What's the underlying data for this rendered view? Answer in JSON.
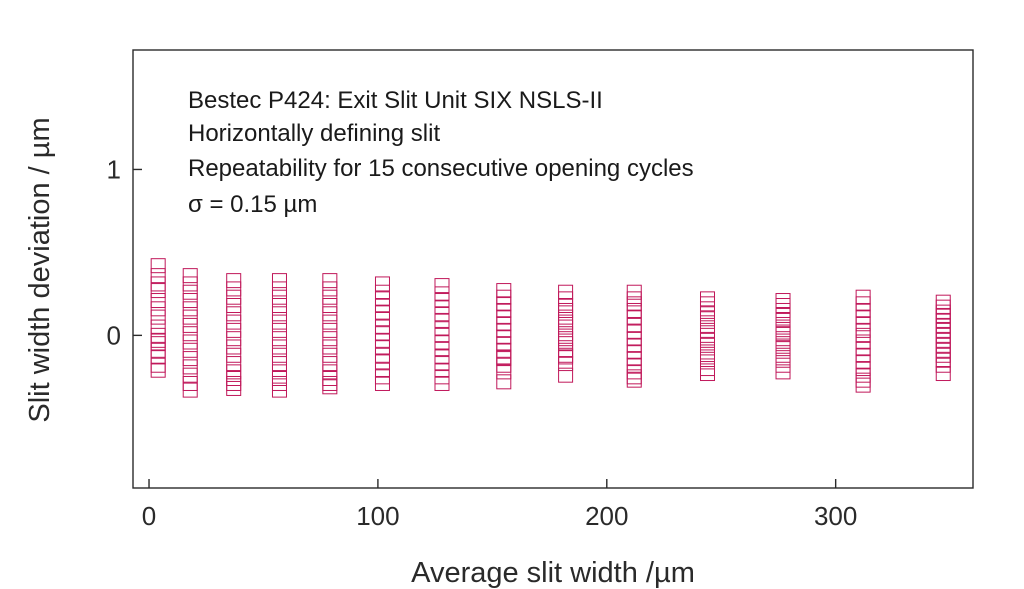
{
  "chart_data": {
    "type": "scatter",
    "xlabel": "Average slit width /µm",
    "ylabel": "Slit width deviation / µm",
    "xlim": [
      -7,
      360
    ],
    "ylim": [
      -0.92,
      1.72
    ],
    "xticks": [
      0,
      100,
      200,
      300
    ],
    "yticks": [
      0,
      1
    ],
    "marker": "open-square",
    "color": "#c0185a",
    "annotations": [
      "Bestec P424: Exit Slit Unit SIX NSLS-II",
      "Horizontally defining slit",
      "Repeatability for 15 consecutive opening cycles",
      "σ = 0.15 µm"
    ],
    "groups": [
      {
        "x": 4,
        "y": [
          0.42,
          0.36,
          0.31,
          0.21,
          0.16,
          0.11,
          0.05,
          0.0,
          -0.05,
          -0.09,
          -0.13,
          -0.18,
          -0.21,
          0.27,
          -0.03
        ]
      },
      {
        "x": 18,
        "y": [
          0.36,
          0.31,
          0.26,
          0.21,
          0.16,
          0.11,
          0.06,
          0.01,
          -0.04,
          -0.09,
          -0.14,
          -0.19,
          -0.24,
          -0.29,
          -0.33
        ]
      },
      {
        "x": 37,
        "y": [
          0.33,
          0.28,
          0.23,
          0.18,
          0.13,
          0.08,
          0.03,
          -0.02,
          -0.07,
          -0.12,
          -0.17,
          -0.22,
          -0.26,
          -0.29,
          -0.32
        ]
      },
      {
        "x": 57,
        "y": [
          0.33,
          0.28,
          0.23,
          0.18,
          0.13,
          0.08,
          0.03,
          -0.02,
          -0.07,
          -0.12,
          -0.17,
          -0.22,
          -0.26,
          -0.29,
          -0.33
        ]
      },
      {
        "x": 79,
        "y": [
          0.33,
          0.28,
          0.23,
          0.18,
          0.13,
          0.08,
          0.03,
          -0.02,
          -0.07,
          -0.12,
          -0.17,
          -0.22,
          -0.26,
          -0.29,
          -0.31
        ]
      },
      {
        "x": 102,
        "y": [
          0.31,
          0.26,
          0.22,
          0.18,
          0.14,
          0.1,
          0.05,
          0.01,
          -0.03,
          -0.07,
          -0.12,
          -0.16,
          -0.21,
          -0.25,
          -0.29
        ]
      },
      {
        "x": 128,
        "y": [
          0.3,
          0.25,
          0.21,
          0.17,
          0.13,
          0.09,
          0.04,
          0.0,
          -0.04,
          -0.08,
          -0.13,
          -0.17,
          -0.21,
          -0.25,
          -0.29
        ]
      },
      {
        "x": 155,
        "y": [
          0.27,
          0.23,
          0.19,
          0.15,
          0.11,
          0.07,
          0.03,
          -0.01,
          -0.05,
          -0.09,
          -0.13,
          -0.14,
          -0.18,
          -0.22,
          -0.28
        ]
      },
      {
        "x": 182,
        "y": [
          0.26,
          0.22,
          0.18,
          0.15,
          0.11,
          0.08,
          0.05,
          0.01,
          -0.02,
          -0.05,
          -0.09,
          -0.12,
          -0.13,
          -0.17,
          -0.24
        ]
      },
      {
        "x": 212,
        "y": [
          0.26,
          0.22,
          0.19,
          0.15,
          0.11,
          0.06,
          0.02,
          -0.02,
          -0.06,
          -0.1,
          -0.14,
          -0.18,
          -0.22,
          -0.25,
          -0.27
        ]
      },
      {
        "x": 244,
        "y": [
          0.22,
          0.19,
          0.16,
          0.13,
          0.1,
          0.06,
          0.03,
          0.0,
          -0.03,
          -0.06,
          -0.1,
          -0.13,
          -0.16,
          -0.2,
          -0.23
        ]
      },
      {
        "x": 277,
        "y": [
          0.21,
          0.18,
          0.15,
          0.12,
          0.09,
          0.05,
          0.02,
          0.01,
          -0.02,
          -0.05,
          -0.08,
          -0.12,
          -0.15,
          -0.18,
          -0.22
        ]
      },
      {
        "x": 312,
        "y": [
          0.23,
          0.19,
          0.15,
          0.11,
          0.07,
          0.03,
          0.0,
          -0.04,
          -0.08,
          -0.12,
          -0.16,
          -0.2,
          -0.24,
          -0.27,
          -0.3
        ]
      },
      {
        "x": 347,
        "y": [
          0.2,
          0.17,
          0.14,
          0.12,
          0.09,
          0.06,
          0.03,
          0.0,
          -0.03,
          -0.06,
          -0.09,
          -0.12,
          -0.15,
          -0.18,
          -0.23
        ]
      }
    ]
  }
}
